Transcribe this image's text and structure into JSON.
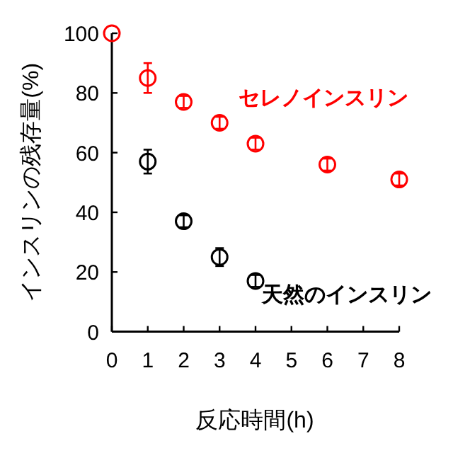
{
  "chart_data": {
    "type": "scatter",
    "xlabel": "反応時間(h)",
    "ylabel": "インスリンの残存量(%)",
    "xlim": [
      0,
      8
    ],
    "ylim": [
      0,
      100
    ],
    "xticks": [
      0,
      1,
      2,
      3,
      4,
      5,
      6,
      7,
      8
    ],
    "yticks": [
      0,
      20,
      40,
      60,
      80,
      100
    ],
    "marker": "circle",
    "legend": false,
    "grid": false,
    "series": [
      {
        "name": "セレノインスリン",
        "color": "#ff0000",
        "x": [
          0,
          1,
          2,
          3,
          4,
          6,
          8
        ],
        "values": [
          100,
          85,
          77,
          70,
          63,
          56,
          51
        ],
        "errors": [
          null,
          5,
          2,
          2,
          2,
          2,
          2
        ]
      },
      {
        "name": "天然のインスリン",
        "color": "#000000",
        "x": [
          1,
          2,
          3,
          4
        ],
        "values": [
          57,
          37,
          25,
          17
        ],
        "errors": [
          4,
          2,
          3,
          2
        ]
      }
    ]
  }
}
